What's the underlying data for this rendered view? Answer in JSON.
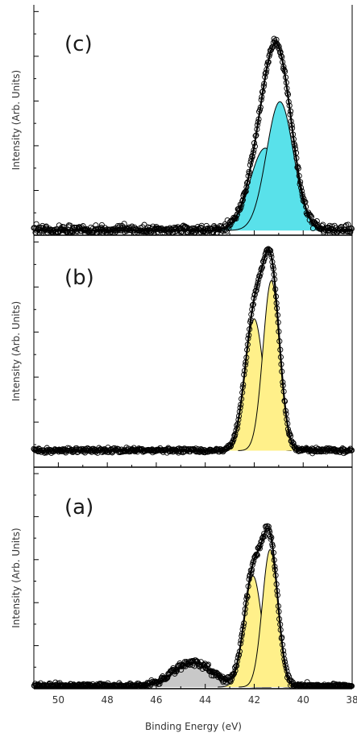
{
  "xlabel": "Binding Energy (eV)",
  "chart_data": [
    {
      "type": "line",
      "panel": "(c)",
      "title": "",
      "xlabel": "",
      "ylabel": "Intensity (Arb. Units)",
      "xlim": [
        51,
        38
      ],
      "ylim": [
        0,
        1.0
      ],
      "x_reversed": true,
      "baseline": 0.015,
      "components": [
        {
          "center": 41.55,
          "height": 0.39,
          "width": 0.62,
          "fill": "#59e1ea"
        },
        {
          "center": 40.95,
          "height": 0.61,
          "width": 0.55,
          "fill": "#59e1ea"
        }
      ],
      "data_points_noise": 0.03,
      "x_ticks": [
        50,
        48,
        46,
        44,
        42,
        40,
        38
      ],
      "x_tick_labels_shown": false
    },
    {
      "type": "line",
      "panel": "(b)",
      "title": "",
      "xlabel": "",
      "ylabel": "Intensity (Arb. Units)",
      "xlim": [
        51,
        38
      ],
      "ylim": [
        0,
        1.0
      ],
      "x_reversed": true,
      "baseline": 0.07,
      "components": [
        {
          "center": 42.0,
          "height": 0.62,
          "width": 0.38,
          "fill": "#fff08a"
        },
        {
          "center": 41.3,
          "height": 0.8,
          "width": 0.34,
          "fill": "#fff08a"
        }
      ],
      "data_points_noise": 0.015,
      "x_ticks": [
        50,
        48,
        46,
        44,
        42,
        40,
        38
      ],
      "x_tick_labels_shown": false
    },
    {
      "type": "line",
      "panel": "(a)",
      "title": "",
      "xlabel": "Binding Energy (eV)",
      "ylabel": "Intensity (Arb. Units)",
      "xlim": [
        51,
        38
      ],
      "ylim": [
        0,
        1.0
      ],
      "x_reversed": true,
      "baseline": 0.0,
      "components": [
        {
          "center": 44.5,
          "height": 0.12,
          "width": 0.8,
          "fill": "#c8c8c8"
        },
        {
          "center": 42.05,
          "height": 0.55,
          "width": 0.36,
          "fill": "#fff08a"
        },
        {
          "center": 41.35,
          "height": 0.68,
          "width": 0.32,
          "fill": "#fff08a"
        }
      ],
      "data_points_noise": 0.025,
      "x_ticks": [
        50,
        48,
        46,
        44,
        42,
        40,
        38
      ],
      "x_tick_labels": [
        "50",
        "48",
        "46",
        "44",
        "42",
        "40",
        "38"
      ],
      "x_tick_labels_shown": true
    }
  ],
  "colors": {
    "axis": "#000000",
    "data_marker_stroke": "#000000",
    "envelope": "#000000",
    "component_line": "#000000",
    "c_fill": "#59e1ea",
    "ab_fill": "#fff08a",
    "a_bg_fill": "#c8c8c8"
  }
}
